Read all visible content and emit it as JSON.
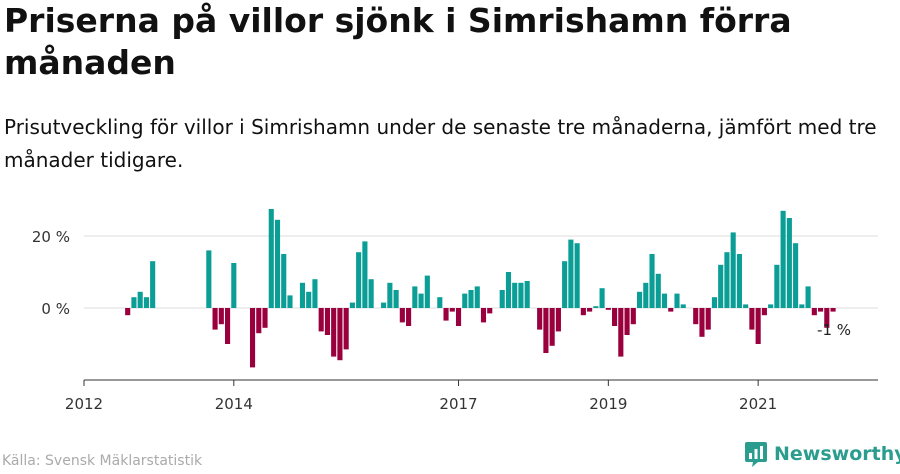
{
  "title": "Priserna på villor sjönk i Simrishamn förra månaden",
  "subtitle": "Prisutveckling för villor i Simrishamn under de senaste tre månaderna, jämfört med tre månader tidigare.",
  "source": "Källa: Svensk Mäklarstatistik",
  "brand": "Newsworthy",
  "colors": {
    "positive": "#0a9e96",
    "negative": "#99003d",
    "brand": "#2a9d8f",
    "axis": "#333333",
    "grid": "#dddddd"
  },
  "chart_data": {
    "type": "bar",
    "unit": "%",
    "ylim": [
      -20,
      30
    ],
    "xlim": [
      2012.0,
      2022.6
    ],
    "y_ticks": [
      {
        "value": 20,
        "label": "20 %"
      },
      {
        "value": 0,
        "label": "0 %"
      }
    ],
    "x_ticks": [
      {
        "value": 2012,
        "label": "2012"
      },
      {
        "value": 2014,
        "label": "2014"
      },
      {
        "value": 2017,
        "label": "2017"
      },
      {
        "value": 2019,
        "label": "2019"
      },
      {
        "value": 2021,
        "label": "2021"
      }
    ],
    "start": 2012.5833,
    "step_months": 1,
    "values": [
      -2,
      3,
      4.5,
      3,
      13,
      null,
      null,
      null,
      null,
      null,
      null,
      null,
      null,
      16,
      -6,
      -4.5,
      -10,
      12.5,
      null,
      null,
      -16.5,
      -7,
      -5.5,
      27.5,
      24.5,
      15,
      3.5,
      null,
      7,
      4.5,
      8,
      -6.5,
      -7.5,
      -13.5,
      -14.5,
      -11.5,
      1.5,
      15.5,
      18.5,
      8,
      null,
      1.5,
      7,
      5,
      -4,
      -5,
      6,
      4,
      9,
      null,
      3,
      -3.5,
      -1,
      -5,
      4,
      5,
      6,
      -4,
      -1.5,
      null,
      5,
      10,
      7,
      7,
      7.5,
      null,
      -6,
      -12.5,
      -10.5,
      -6.5,
      13,
      19,
      18,
      -2,
      -1,
      0.5,
      5.5,
      -0.5,
      -5,
      -13.5,
      -7.5,
      -4.5,
      4.5,
      7,
      15,
      9.5,
      4,
      -1,
      4,
      1,
      null,
      -4.5,
      -8,
      -6,
      3,
      12,
      15.5,
      21,
      15,
      1,
      -6,
      -10,
      -2,
      1,
      12,
      27,
      25,
      18,
      1,
      6,
      -2,
      -1,
      -5.5,
      -1
    ],
    "last_label": "-1 %"
  }
}
